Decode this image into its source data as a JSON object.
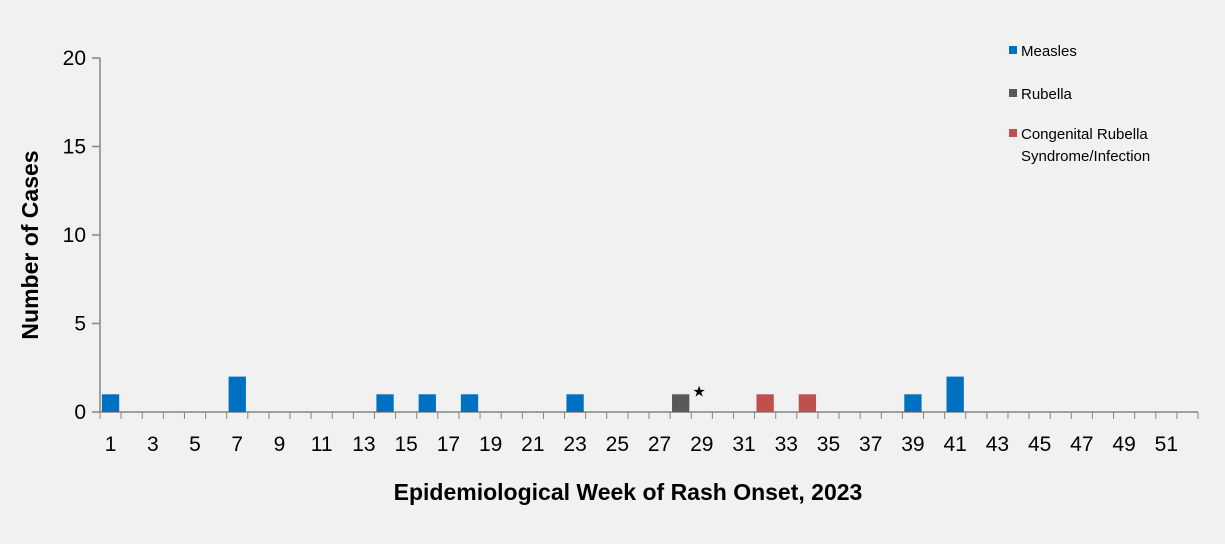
{
  "chart_data": {
    "type": "bar",
    "title": "",
    "xlabel": "Epidemiological Week of Rash Onset, 2023",
    "ylabel": "Number of Cases",
    "xlim": [
      1,
      52
    ],
    "ylim": [
      0,
      20
    ],
    "yticks": [
      0,
      5,
      10,
      15,
      20
    ],
    "xticks": [
      1,
      3,
      5,
      7,
      9,
      11,
      13,
      15,
      17,
      19,
      21,
      23,
      25,
      27,
      29,
      31,
      33,
      35,
      37,
      39,
      41,
      43,
      45,
      47,
      49,
      51
    ],
    "grid": false,
    "legend_position": "top-right",
    "series": [
      {
        "name": "Measles",
        "color": "#0070c0",
        "points": [
          [
            1,
            1
          ],
          [
            7,
            2
          ],
          [
            14,
            1
          ],
          [
            16,
            1
          ],
          [
            18,
            1
          ],
          [
            23,
            1
          ],
          [
            39,
            1
          ],
          [
            41,
            2
          ]
        ]
      },
      {
        "name": "Rubella",
        "color": "#595959",
        "points": [
          [
            28,
            1
          ]
        ]
      },
      {
        "name": "Congenital Rubella Syndrome/Infection",
        "legend_lines": [
          "Congenital Rubella",
          "Syndrome/Infection"
        ],
        "color": "#c0504d",
        "points": [
          [
            32,
            1
          ],
          [
            34,
            1
          ]
        ]
      }
    ],
    "annotations": [
      {
        "text": "★",
        "x": 28,
        "y": 1,
        "placement": "right-top"
      }
    ]
  }
}
